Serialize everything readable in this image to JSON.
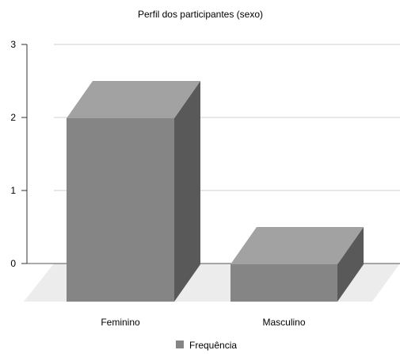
{
  "chart_data": {
    "type": "bar",
    "title": "Perfil dos participantes (sexo)",
    "categories": [
      "Feminino",
      "Masculino"
    ],
    "series": [
      {
        "name": "Frequência",
        "values": [
          2.5,
          0.5
        ]
      }
    ],
    "ylim": [
      0,
      3
    ],
    "yticks": [
      "0",
      "1",
      "2",
      "3"
    ],
    "grid": true,
    "legend": "bottom-center",
    "style": "3d",
    "colors": {
      "bar_front": "#858585",
      "bar_top": "#a2a2a2",
      "bar_side": "#595959",
      "floor": "#ececec",
      "grid": "#cfcfcf"
    }
  }
}
